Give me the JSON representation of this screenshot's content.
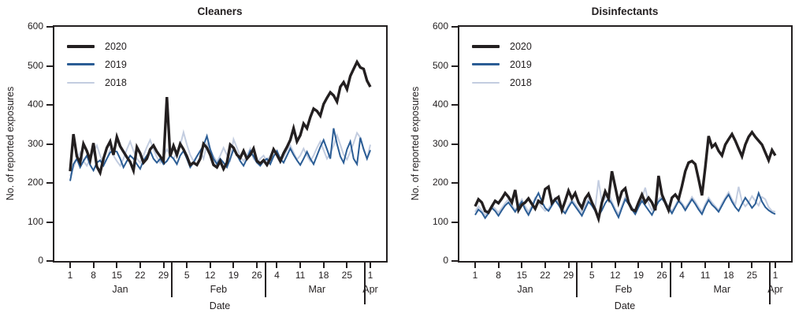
{
  "figure": {
    "ylabel": "No. of reported exposures",
    "xlabel": "Date",
    "legend": [
      "2020",
      "2019",
      "2018"
    ],
    "colors": {
      "2020": "#231f20",
      "2019": "#2b5d95",
      "2018": "#c3cde0",
      "axis": "#231f20",
      "background": "#ffffff"
    },
    "y_ticks": [
      0,
      100,
      200,
      300,
      400,
      500,
      600
    ],
    "x_day_ticks": [
      {
        "label": "1",
        "i": 0
      },
      {
        "label": "8",
        "i": 7
      },
      {
        "label": "15",
        "i": 14
      },
      {
        "label": "22",
        "i": 21
      },
      {
        "label": "29",
        "i": 28
      },
      {
        "label": "5",
        "i": 35
      },
      {
        "label": "12",
        "i": 42
      },
      {
        "label": "19",
        "i": 49
      },
      {
        "label": "26",
        "i": 56
      },
      {
        "label": "4",
        "i": 62
      },
      {
        "label": "11",
        "i": 69
      },
      {
        "label": "18",
        "i": 76
      },
      {
        "label": "25",
        "i": 83
      },
      {
        "label": "1",
        "i": 90
      }
    ],
    "month_labels": [
      {
        "label": "Jan",
        "i": 15
      },
      {
        "label": "Feb",
        "i": 44.5
      },
      {
        "label": "Mar",
        "i": 74
      },
      {
        "label": "Apr",
        "i": 90
      }
    ],
    "month_separators": [
      {
        "i": 30.5,
        "h": 44
      },
      {
        "i": 58.5,
        "h": 44
      },
      {
        "i": 88.3,
        "h": 53
      }
    ]
  },
  "chart_data": [
    {
      "type": "line",
      "title": "Cleaners",
      "xlabel": "Date",
      "ylabel": "No. of reported exposures",
      "ylim": [
        0,
        600
      ],
      "x_range": "daily, Jan 1 through Apr 1",
      "legend_position": "upper-left inside plot",
      "grid": false,
      "series": [
        {
          "name": "2020",
          "color": "#231f20",
          "stroke_width": 3.4,
          "values": [
            230,
            325,
            268,
            252,
            300,
            282,
            258,
            302,
            242,
            226,
            262,
            290,
            306,
            272,
            318,
            294,
            280,
            266,
            254,
            232,
            292,
            276,
            252,
            262,
            286,
            296,
            280,
            268,
            256,
            420,
            268,
            295,
            272,
            300,
            286,
            268,
            246,
            252,
            246,
            262,
            300,
            290,
            272,
            246,
            240,
            256,
            236,
            252,
            298,
            290,
            272,
            264,
            282,
            262,
            272,
            288,
            256,
            250,
            258,
            246,
            262,
            286,
            272,
            256,
            276,
            292,
            310,
            340,
            306,
            322,
            352,
            340,
            368,
            390,
            384,
            372,
            402,
            418,
            432,
            424,
            408,
            446,
            458,
            440,
            474,
            492,
            510,
            496,
            492,
            462,
            446
          ]
        },
        {
          "name": "2019",
          "color": "#2b5d95",
          "stroke_width": 2,
          "values": [
            205,
            248,
            262,
            240,
            256,
            270,
            246,
            232,
            252,
            258,
            244,
            262,
            278,
            282,
            280,
            262,
            240,
            256,
            270,
            262,
            248,
            236,
            258,
            270,
            282,
            262,
            252,
            262,
            248,
            256,
            270,
            262,
            248,
            270,
            282,
            262,
            240,
            252,
            268,
            282,
            296,
            320,
            286,
            262,
            248,
            262,
            252,
            240,
            262,
            286,
            272,
            256,
            244,
            262,
            282,
            268,
            252,
            244,
            256,
            262,
            248,
            268,
            282,
            262,
            252,
            270,
            288,
            272,
            258,
            246,
            262,
            280,
            262,
            248,
            270,
            292,
            310,
            286,
            262,
            340,
            300,
            268,
            252,
            286,
            306,
            262,
            248,
            316,
            286,
            262,
            284
          ]
        },
        {
          "name": "2018",
          "color": "#c3cde0",
          "stroke_width": 2,
          "values": [
            218,
            240,
            262,
            278,
            256,
            244,
            262,
            280,
            296,
            270,
            252,
            262,
            286,
            270,
            256,
            244,
            262,
            286,
            306,
            282,
            262,
            252,
            270,
            292,
            310,
            286,
            266,
            252,
            268,
            286,
            270,
            262,
            278,
            296,
            330,
            298,
            272,
            256,
            268,
            282,
            262,
            300,
            286,
            268,
            254,
            270,
            290,
            272,
            258,
            312,
            290,
            268,
            256,
            270,
            288,
            262,
            252,
            262,
            270,
            256,
            270,
            286,
            268,
            252,
            266,
            284,
            296,
            278,
            260,
            270,
            288,
            270,
            256,
            270,
            290,
            306,
            284,
            262,
            276,
            296,
            322,
            298,
            272,
            260,
            280,
            302,
            328,
            316,
            288,
            262,
            298
          ]
        }
      ]
    },
    {
      "type": "line",
      "title": "Disinfectants",
      "xlabel": "Date",
      "ylabel": "No. of reported exposures",
      "ylim": [
        0,
        600
      ],
      "x_range": "daily, Jan 1 through Apr 1",
      "legend_position": "upper-left inside plot",
      "grid": false,
      "series": [
        {
          "name": "2020",
          "color": "#231f20",
          "stroke_width": 3.4,
          "values": [
            140,
            158,
            150,
            128,
            124,
            140,
            154,
            148,
            160,
            174,
            164,
            150,
            182,
            130,
            144,
            150,
            160,
            146,
            134,
            154,
            148,
            184,
            190,
            148,
            158,
            164,
            130,
            154,
            180,
            160,
            174,
            150,
            136,
            160,
            172,
            150,
            132,
            108,
            150,
            178,
            160,
            230,
            190,
            150,
            178,
            186,
            150,
            132,
            128,
            150,
            170,
            150,
            162,
            150,
            130,
            218,
            170,
            150,
            130,
            162,
            170,
            158,
            192,
            230,
            252,
            256,
            248,
            210,
            168,
            240,
            320,
            292,
            300,
            282,
            270,
            298,
            312,
            325,
            308,
            288,
            268,
            298,
            318,
            330,
            318,
            308,
            298,
            278,
            258,
            284,
            270
          ]
        },
        {
          "name": "2019",
          "color": "#2b5d95",
          "stroke_width": 2,
          "values": [
            118,
            132,
            124,
            110,
            122,
            136,
            128,
            116,
            130,
            142,
            150,
            138,
            126,
            140,
            152,
            132,
            118,
            136,
            158,
            174,
            152,
            136,
            128,
            142,
            156,
            144,
            130,
            122,
            138,
            152,
            140,
            128,
            116,
            134,
            152,
            142,
            128,
            116,
            130,
            148,
            160,
            146,
            128,
            112,
            136,
            158,
            146,
            132,
            120,
            138,
            154,
            142,
            130,
            118,
            136,
            152,
            160,
            148,
            136,
            122,
            138,
            154,
            144,
            130,
            144,
            158,
            146,
            132,
            120,
            140,
            156,
            144,
            136,
            126,
            142,
            158,
            170,
            152,
            138,
            128,
            146,
            162,
            150,
            136,
            146,
            174,
            152,
            138,
            130,
            124,
            120
          ]
        },
        {
          "name": "2018",
          "color": "#c3cde0",
          "stroke_width": 2,
          "values": [
            126,
            140,
            130,
            118,
            128,
            142,
            134,
            124,
            136,
            148,
            158,
            144,
            130,
            144,
            158,
            140,
            126,
            142,
            162,
            150,
            138,
            128,
            134,
            148,
            162,
            150,
            136,
            126,
            142,
            158,
            146,
            134,
            124,
            142,
            160,
            150,
            136,
            207,
            150,
            162,
            174,
            152,
            134,
            120,
            142,
            164,
            152,
            138,
            126,
            144,
            160,
            188,
            148,
            130,
            142,
            158,
            166,
            152,
            140,
            128,
            142,
            160,
            148,
            136,
            148,
            164,
            152,
            138,
            126,
            146,
            162,
            150,
            140,
            130,
            148,
            162,
            176,
            158,
            144,
            190,
            152,
            140,
            150,
            166,
            154,
            142,
            164,
            158,
            138,
            128,
            126
          ]
        }
      ]
    }
  ]
}
